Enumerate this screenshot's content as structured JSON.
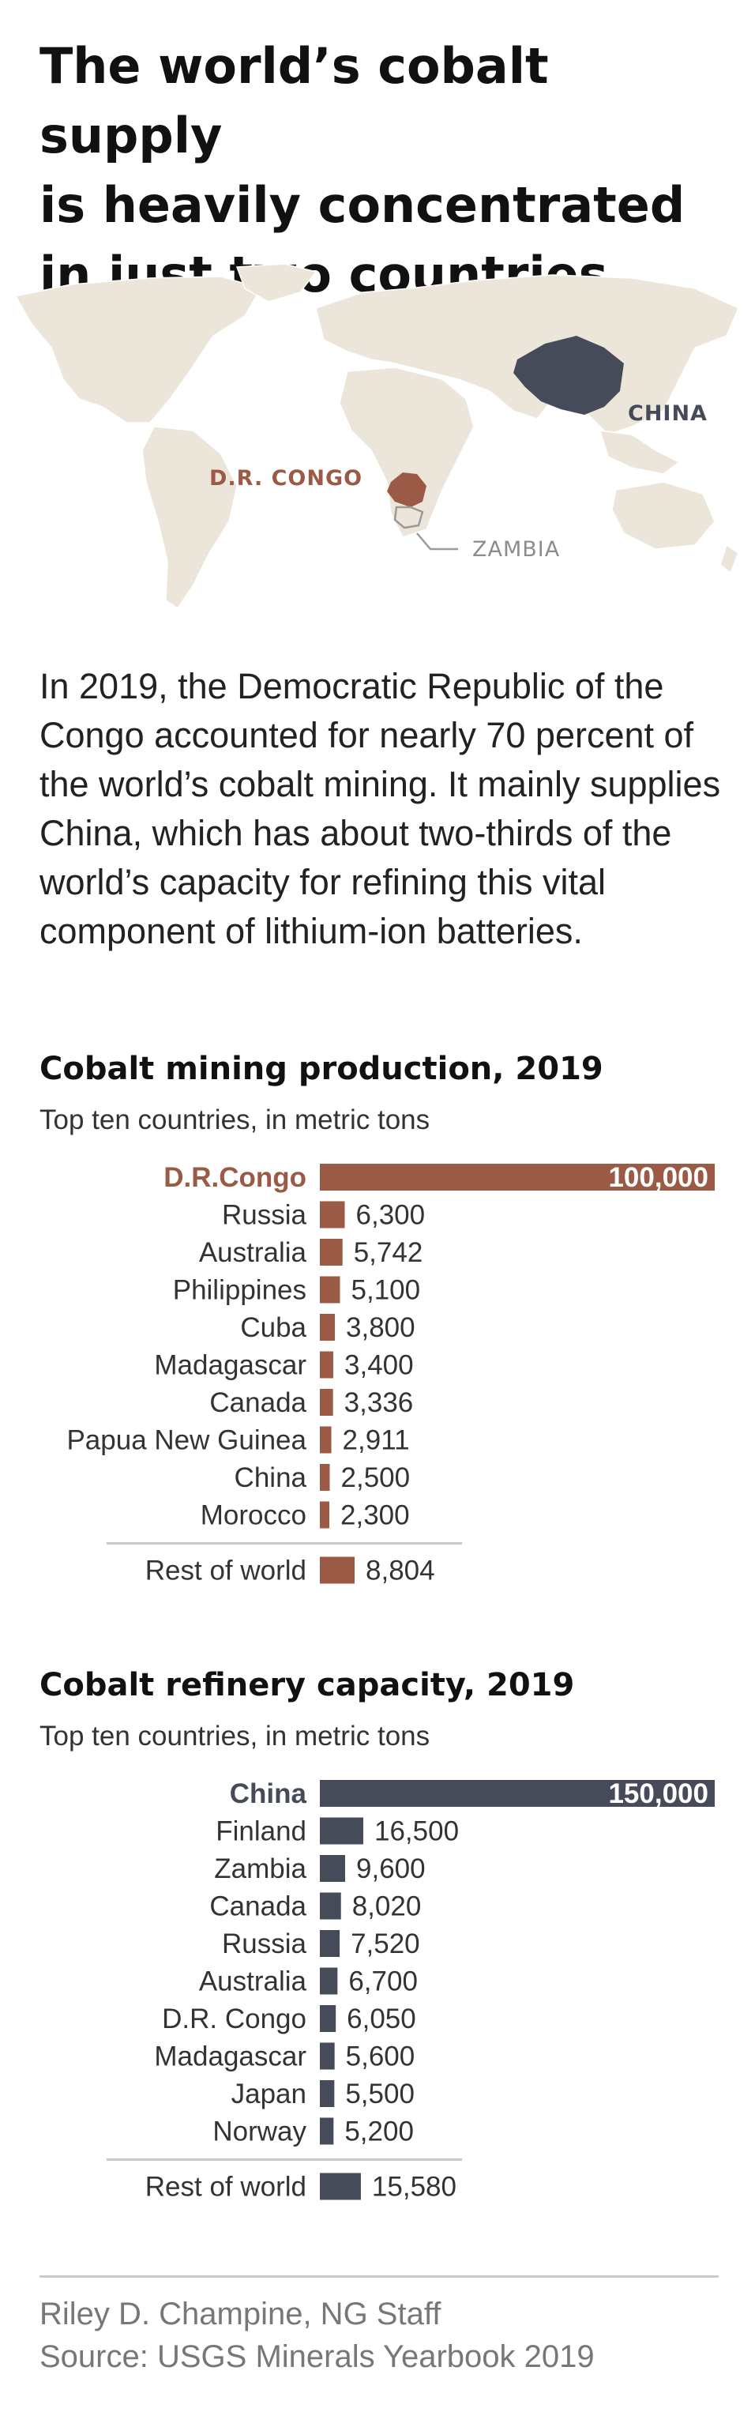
{
  "title": "The world’s cobalt supply\nis heavily concentrated\nin just two countries",
  "map": {
    "labels": {
      "congo": "D.R. CONGO",
      "china": "CHINA",
      "zambia": "ZAMBIA"
    },
    "colors": {
      "land": "#ece5d9",
      "congo": "#9b5a45",
      "china": "#454b58",
      "zambia_outline": "#9a9a9a"
    }
  },
  "intro": "In 2019, the Democratic Republic of the Congo accounted for nearly 70 percent of the world’s cobalt mining. It mainly supplies China, which has about two-thirds of the world’s capacity for refining this vital component of lithium-ion batteries.",
  "sections": [
    {
      "title": "Cobalt mining production, 2019",
      "subtitle": "Top ten countries, in metric tons"
    },
    {
      "title": "Cobalt refinery capacity, 2019",
      "subtitle": "Top ten countries, in metric tons"
    }
  ],
  "chart_data": [
    {
      "type": "bar",
      "orientation": "horizontal",
      "title": "Cobalt mining production, 2019",
      "subtitle": "Top ten countries, in metric tons",
      "color": "#9b5a45",
      "highlight_index": 0,
      "categories": [
        "D.R.Congo",
        "Russia",
        "Australia",
        "Philippines",
        "Cuba",
        "Madagascar",
        "Canada",
        "Papua New Guinea",
        "China",
        "Morocco"
      ],
      "values": [
        100000,
        6300,
        5742,
        5100,
        3800,
        3400,
        3336,
        2911,
        2500,
        2300
      ],
      "value_labels": [
        "100,000",
        "6,300",
        "5,742",
        "5,100",
        "3,800",
        "3,400",
        "3,336",
        "2,911",
        "2,500",
        "2,300"
      ],
      "rest": {
        "label": "Rest of world",
        "value": 8804,
        "value_label": "8,804"
      }
    },
    {
      "type": "bar",
      "orientation": "horizontal",
      "title": "Cobalt refinery capacity, 2019",
      "subtitle": "Top ten countries, in metric tons",
      "color": "#454b58",
      "highlight_index": 0,
      "categories": [
        "China",
        "Finland",
        "Zambia",
        "Canada",
        "Russia",
        "Australia",
        "D.R. Congo",
        "Madagascar",
        "Japan",
        "Norway"
      ],
      "values": [
        150000,
        16500,
        9600,
        8020,
        7520,
        6700,
        6050,
        5600,
        5500,
        5200
      ],
      "value_labels": [
        "150,000",
        "16,500",
        "9,600",
        "8,020",
        "7,520",
        "6,700",
        "6,050",
        "5,600",
        "5,500",
        "5,200"
      ],
      "rest": {
        "label": "Rest of world",
        "value": 15580,
        "value_label": "15,580"
      }
    }
  ],
  "credits": {
    "author": "Riley D. Champine, NG Staff",
    "source": "Source: USGS Minerals Yearbook 2019"
  }
}
